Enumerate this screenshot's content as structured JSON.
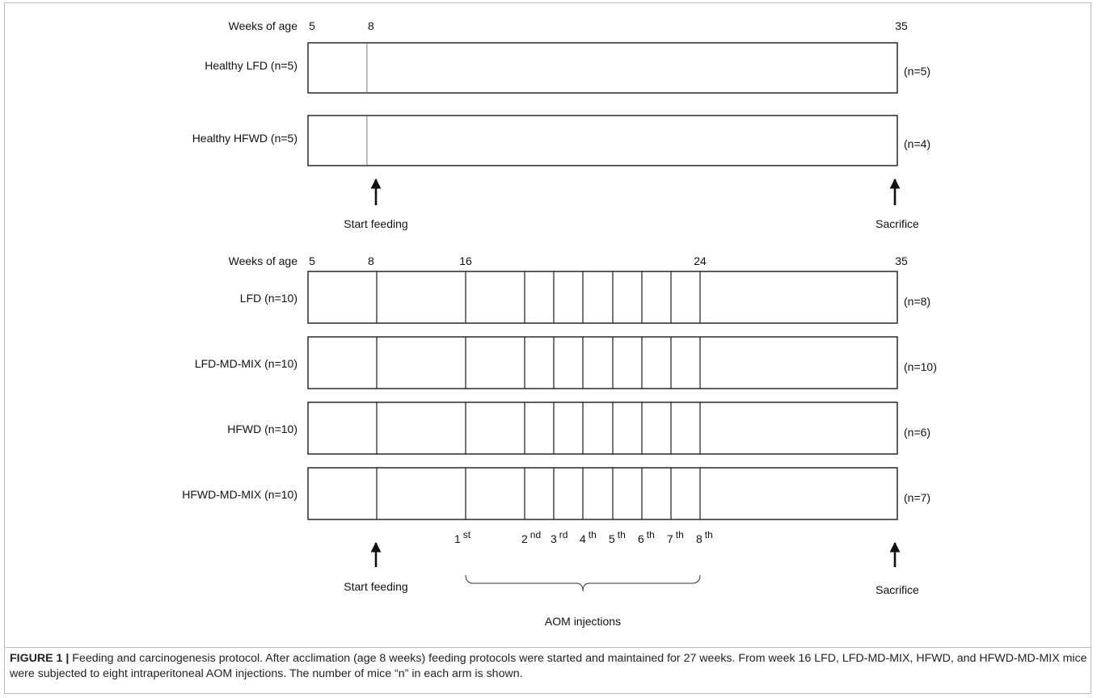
{
  "top": {
    "axis_label": "Weeks of age",
    "ticks": [
      {
        "week": 5,
        "label": "5"
      },
      {
        "week": 8,
        "label": "8"
      },
      {
        "week": 35,
        "label": "35"
      }
    ],
    "rows": [
      {
        "label": "Healthy LFD (n=5)",
        "n_end": "(n=5)"
      },
      {
        "label": "Healthy HFWD (n=5)",
        "n_end": "(n=4)"
      }
    ],
    "start_label": "Start feeding",
    "end_label": "Sacrifice"
  },
  "bottom": {
    "axis_label": "Weeks of age",
    "ticks": [
      {
        "week": 5,
        "label": "5"
      },
      {
        "week": 8,
        "label": "8"
      },
      {
        "week": 16,
        "label": "16"
      },
      {
        "week": 24,
        "label": "24"
      },
      {
        "week": 35,
        "label": "35"
      }
    ],
    "rows": [
      {
        "label": "LFD (n=10)",
        "n_end": "(n=8)"
      },
      {
        "label": "LFD-MD-MIX (n=10)",
        "n_end": "(n=10)"
      },
      {
        "label": "HFWD (n=10)",
        "n_end": "(n=6)"
      },
      {
        "label": "HFWD-MD-MIX (n=10)",
        "n_end": "(n=7)"
      }
    ],
    "injections": [
      {
        "num": "1",
        "sup": "st"
      },
      {
        "num": "2",
        "sup": "nd"
      },
      {
        "num": "3",
        "sup": "rd"
      },
      {
        "num": "4",
        "sup": "th"
      },
      {
        "num": "5",
        "sup": "th"
      },
      {
        "num": "6",
        "sup": "th"
      },
      {
        "num": "7",
        "sup": "th"
      },
      {
        "num": "8",
        "sup": "th"
      }
    ],
    "start_label": "Start feeding",
    "injection_label": "AOM  injections",
    "end_label": "Sacrifice"
  },
  "caption": {
    "title": "FIGURE 1 |",
    "text": " Feeding and carcinogenesis protocol. After acclimation (age 8 weeks) feeding protocols were started and maintained for 27 weeks. From week 16 LFD, LFD-MD-MIX, HFWD, and HFWD-MD-MIX mice were subjected to eight intraperitoneal AOM injections. The number of mice “n” in each arm is shown."
  }
}
